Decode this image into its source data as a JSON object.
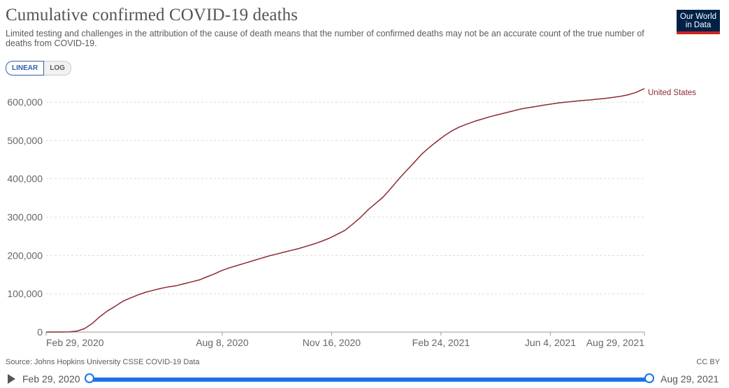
{
  "header": {
    "title": "Cumulative confirmed COVID-19 deaths",
    "subtitle": "Limited testing and challenges in the attribution of the cause of death means that the number of confirmed deaths may not be an accurate count of the true number of deaths from COVID-19.",
    "logo_line1": "Our World",
    "logo_line2": "in Data"
  },
  "controls": {
    "linear_label": "LINEAR",
    "log_label": "LOG"
  },
  "colors": {
    "series": "#8c2a34",
    "brand": "#002147",
    "accent": "#ce261e",
    "slider": "#1a73e8"
  },
  "footer": {
    "source": "Source: Johns Hopkins University CSSE COVID-19 Data",
    "license": "CC BY"
  },
  "timeline": {
    "start_label": "Feb 29, 2020",
    "end_label": "Aug 29, 2021"
  },
  "chart_data": {
    "type": "line",
    "title": "Cumulative confirmed COVID-19 deaths",
    "xlabel": "",
    "ylabel": "",
    "x_range": [
      "2020-02-29",
      "2021-08-29"
    ],
    "ylim": [
      0,
      600000
    ],
    "y_ticks": [
      0,
      100000,
      200000,
      300000,
      400000,
      500000,
      600000
    ],
    "y_tick_labels": [
      "0",
      "100,000",
      "200,000",
      "300,000",
      "400,000",
      "500,000",
      "600,000"
    ],
    "x_ticks": [
      {
        "date": "2020-02-29",
        "label": "Feb 29, 2020"
      },
      {
        "date": "2020-08-08",
        "label": "Aug 8, 2020"
      },
      {
        "date": "2020-11-16",
        "label": "Nov 16, 2020"
      },
      {
        "date": "2021-02-24",
        "label": "Feb 24, 2021"
      },
      {
        "date": "2021-06-04",
        "label": "Jun 4, 2021"
      },
      {
        "date": "2021-08-29",
        "label": "Aug 29, 2021"
      }
    ],
    "grid": true,
    "series": [
      {
        "name": "United States",
        "points": [
          [
            "2020-02-29",
            0
          ],
          [
            "2020-03-14",
            100
          ],
          [
            "2020-03-21",
            400
          ],
          [
            "2020-03-28",
            2500
          ],
          [
            "2020-04-04",
            9000
          ],
          [
            "2020-04-11",
            22000
          ],
          [
            "2020-04-18",
            40000
          ],
          [
            "2020-04-25",
            55000
          ],
          [
            "2020-05-02",
            67000
          ],
          [
            "2020-05-09",
            80000
          ],
          [
            "2020-05-16",
            89000
          ],
          [
            "2020-05-23",
            97000
          ],
          [
            "2020-05-30",
            104000
          ],
          [
            "2020-06-06",
            109000
          ],
          [
            "2020-06-13",
            114000
          ],
          [
            "2020-06-20",
            118000
          ],
          [
            "2020-06-27",
            121000
          ],
          [
            "2020-07-04",
            126000
          ],
          [
            "2020-07-11",
            131000
          ],
          [
            "2020-07-18",
            136000
          ],
          [
            "2020-07-25",
            144000
          ],
          [
            "2020-08-01",
            152000
          ],
          [
            "2020-08-08",
            161000
          ],
          [
            "2020-08-15",
            168000
          ],
          [
            "2020-08-22",
            174000
          ],
          [
            "2020-08-29",
            180000
          ],
          [
            "2020-09-05",
            186000
          ],
          [
            "2020-09-12",
            192000
          ],
          [
            "2020-09-19",
            198000
          ],
          [
            "2020-09-26",
            203000
          ],
          [
            "2020-10-03",
            208000
          ],
          [
            "2020-10-10",
            213000
          ],
          [
            "2020-10-17",
            218000
          ],
          [
            "2020-10-24",
            224000
          ],
          [
            "2020-10-31",
            230000
          ],
          [
            "2020-11-07",
            237000
          ],
          [
            "2020-11-14",
            245000
          ],
          [
            "2020-11-21",
            255000
          ],
          [
            "2020-11-28",
            265000
          ],
          [
            "2020-12-05",
            281000
          ],
          [
            "2020-12-12",
            298000
          ],
          [
            "2020-12-19",
            318000
          ],
          [
            "2020-12-26",
            335000
          ],
          [
            "2021-01-02",
            352000
          ],
          [
            "2021-01-09",
            374000
          ],
          [
            "2021-01-16",
            398000
          ],
          [
            "2021-01-23",
            420000
          ],
          [
            "2021-01-30",
            441000
          ],
          [
            "2021-02-06",
            463000
          ],
          [
            "2021-02-13",
            481000
          ],
          [
            "2021-02-20",
            497000
          ],
          [
            "2021-02-27",
            512000
          ],
          [
            "2021-03-06",
            525000
          ],
          [
            "2021-03-13",
            535000
          ],
          [
            "2021-03-20",
            543000
          ],
          [
            "2021-03-27",
            550000
          ],
          [
            "2021-04-03",
            556000
          ],
          [
            "2021-04-10",
            562000
          ],
          [
            "2021-04-17",
            567000
          ],
          [
            "2021-04-24",
            572000
          ],
          [
            "2021-05-01",
            577000
          ],
          [
            "2021-05-08",
            582000
          ],
          [
            "2021-05-15",
            585500
          ],
          [
            "2021-05-22",
            588500
          ],
          [
            "2021-05-29",
            592000
          ],
          [
            "2021-06-05",
            595000
          ],
          [
            "2021-06-12",
            598000
          ],
          [
            "2021-06-19",
            600000
          ],
          [
            "2021-06-26",
            602000
          ],
          [
            "2021-07-03",
            604000
          ],
          [
            "2021-07-10",
            605500
          ],
          [
            "2021-07-17",
            607500
          ],
          [
            "2021-07-24",
            609500
          ],
          [
            "2021-07-31",
            612000
          ],
          [
            "2021-08-07",
            615000
          ],
          [
            "2021-08-14",
            619000
          ],
          [
            "2021-08-21",
            625000
          ],
          [
            "2021-08-29",
            635000
          ]
        ]
      }
    ]
  }
}
